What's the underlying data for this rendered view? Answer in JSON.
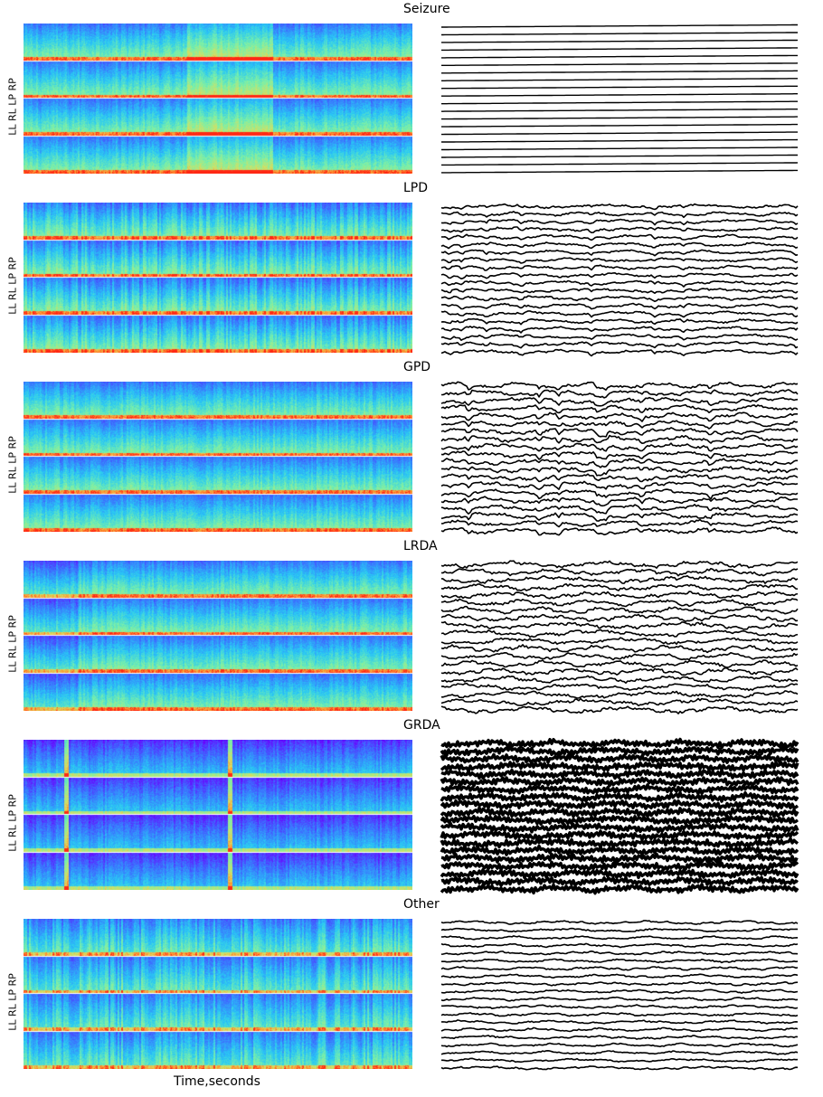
{
  "figure": {
    "xlabel": "Time,seconds",
    "ylabel": "LL  RL  LP  RP",
    "channels": [
      "LL",
      "RL",
      "LP",
      "RP"
    ]
  },
  "colormap": {
    "name": "rainbow",
    "low": "#6a00ff",
    "mid": "#4fc3ff",
    "high": "#ff3a1e"
  },
  "chart_data": [
    {
      "type": "heatmap",
      "title": "Seizure",
      "traces": 20,
      "trace_style": "flat",
      "spec_style": "seizure"
    },
    {
      "type": "heatmap",
      "title": "LPD",
      "traces": 20,
      "trace_style": "lpd",
      "spec_style": "lpd"
    },
    {
      "type": "heatmap",
      "title": "GPD",
      "traces": 20,
      "trace_style": "gpd",
      "spec_style": "gpd"
    },
    {
      "type": "heatmap",
      "title": "LRDA",
      "traces": 20,
      "trace_style": "lrda",
      "spec_style": "lrda"
    },
    {
      "type": "heatmap",
      "title": "GRDA",
      "traces": 20,
      "trace_style": "grda",
      "spec_style": "grda"
    },
    {
      "type": "heatmap",
      "title": "Other",
      "traces": 20,
      "trace_style": "other",
      "spec_style": "other"
    }
  ]
}
